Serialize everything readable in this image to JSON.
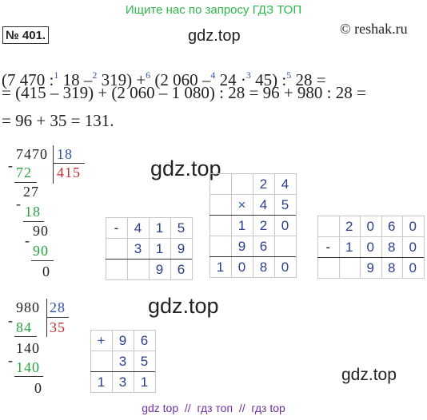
{
  "banner": "Ищите нас по запросу ГДЗ ТОП",
  "number": "№ 401.",
  "copyright": "© reshak.ru",
  "watermarks": [
    "gdz.top",
    "gdz.top",
    "gdz.top",
    "gdz.top"
  ],
  "solution": {
    "lines": [
      [
        "(7 470 :",
        "1",
        " 18 –",
        "2",
        " 319) +",
        "6",
        " (2 060 –",
        "4",
        " 24 ·",
        "3",
        " 45) :",
        "5",
        " 28 ="
      ],
      [
        "= (415 – 319) + (2 060 – 1 080) : 28 = 96 + 980 : 28 ="
      ],
      [
        "= 96 + 35 = 131."
      ]
    ]
  },
  "division_1": {
    "operator": "-",
    "dividend": 7470,
    "divisor": 18,
    "quotient": 415,
    "steps": [
      72,
      27,
      18,
      90,
      90,
      0
    ]
  },
  "subtraction_1": {
    "operator": "-",
    "rows": [
      [
        "4",
        "1",
        "5"
      ],
      [
        "3",
        "1",
        "9"
      ],
      [
        "9",
        "6"
      ]
    ]
  },
  "multiplication": {
    "operator": "×",
    "rows": [
      [
        "2",
        "4"
      ],
      [
        "4",
        "5"
      ],
      [
        "1",
        "2",
        "0"
      ],
      [
        "9",
        "6"
      ],
      [
        "1",
        "0",
        "8",
        "0"
      ]
    ]
  },
  "subtraction_2": {
    "operator": "-",
    "rows": [
      [
        "2",
        "0",
        "6",
        "0"
      ],
      [
        "1",
        "0",
        "8",
        "0"
      ],
      [
        "9",
        "8",
        "0"
      ]
    ]
  },
  "division_2": {
    "operator": "-",
    "dividend": 980,
    "divisor": 28,
    "quotient": 35,
    "steps": [
      84,
      140,
      140,
      0
    ]
  },
  "addition": {
    "operator": "+",
    "rows": [
      [
        "9",
        "6"
      ],
      [
        "3",
        "5"
      ],
      [
        "1",
        "3",
        "1"
      ]
    ]
  },
  "footer": "gdz top  //  гдз топ  //  гдз top"
}
